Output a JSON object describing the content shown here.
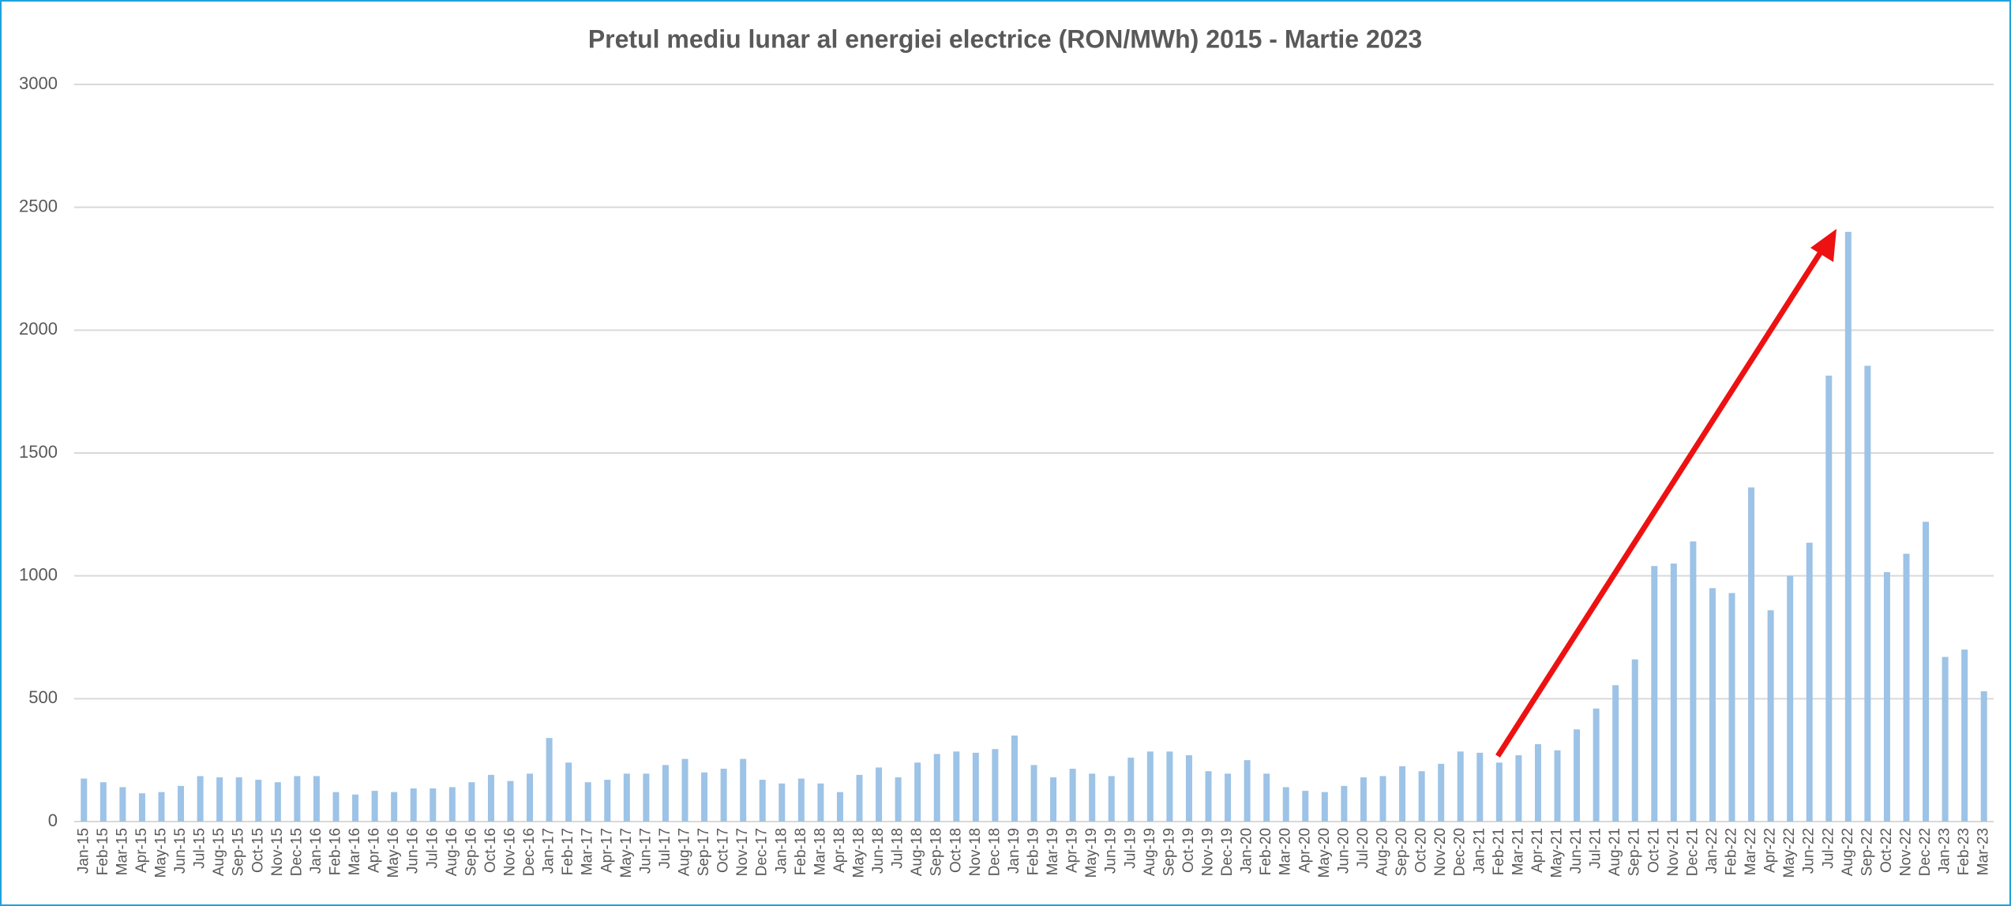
{
  "chart_data": {
    "type": "bar",
    "title": "Pretul mediu lunar al energiei electrice (RON/MWh) 2015 - Martie 2023",
    "categories": [
      "Jan-15",
      "Feb-15",
      "Mar-15",
      "Apr-15",
      "May-15",
      "Jun-15",
      "Jul-15",
      "Aug-15",
      "Sep-15",
      "Oct-15",
      "Nov-15",
      "Dec-15",
      "Jan-16",
      "Feb-16",
      "Mar-16",
      "Apr-16",
      "May-16",
      "Jun-16",
      "Jul-16",
      "Aug-16",
      "Sep-16",
      "Oct-16",
      "Nov-16",
      "Dec-16",
      "Jan-17",
      "Feb-17",
      "Mar-17",
      "Apr-17",
      "May-17",
      "Jun-17",
      "Jul-17",
      "Aug-17",
      "Sep-17",
      "Oct-17",
      "Nov-17",
      "Dec-17",
      "Jan-18",
      "Feb-18",
      "Mar-18",
      "Apr-18",
      "May-18",
      "Jun-18",
      "Jul-18",
      "Aug-18",
      "Sep-18",
      "Oct-18",
      "Nov-18",
      "Dec-18",
      "Jan-19",
      "Feb-19",
      "Mar-19",
      "Apr-19",
      "May-19",
      "Jun-19",
      "Jul-19",
      "Aug-19",
      "Sep-19",
      "Oct-19",
      "Nov-19",
      "Dec-19",
      "Jan-20",
      "Feb-20",
      "Mar-20",
      "Apr-20",
      "May-20",
      "Jun-20",
      "Jul-20",
      "Aug-20",
      "Sep-20",
      "Oct-20",
      "Nov-20",
      "Dec-20",
      "Jan-21",
      "Feb-21",
      "Mar-21",
      "Apr-21",
      "May-21",
      "Jun-21",
      "Jul-21",
      "Aug-21",
      "Sep-21",
      "Oct-21",
      "Nov-21",
      "Dec-21",
      "Jan-22",
      "Feb-22",
      "Mar-22",
      "Apr-22",
      "May-22",
      "Jun-22",
      "Jul-22",
      "Aug-22",
      "Sep-22",
      "Oct-22",
      "Nov-22",
      "Dec-22",
      "Jan-23",
      "Feb-23",
      "Mar-23"
    ],
    "values": [
      175,
      160,
      140,
      115,
      120,
      145,
      185,
      180,
      180,
      170,
      160,
      185,
      185,
      120,
      110,
      125,
      120,
      135,
      135,
      140,
      160,
      190,
      165,
      195,
      340,
      240,
      160,
      170,
      195,
      195,
      230,
      255,
      200,
      215,
      255,
      170,
      155,
      175,
      155,
      120,
      190,
      220,
      180,
      240,
      275,
      285,
      280,
      295,
      350,
      230,
      180,
      215,
      195,
      185,
      260,
      285,
      285,
      270,
      205,
      195,
      250,
      195,
      140,
      125,
      120,
      145,
      180,
      185,
      225,
      205,
      235,
      285,
      280,
      240,
      270,
      315,
      290,
      375,
      460,
      555,
      660,
      1040,
      1050,
      1140,
      950,
      930,
      1360,
      860,
      1000,
      1135,
      1815,
      2400,
      1855,
      1015,
      1090,
      1220,
      670,
      700,
      530
    ],
    "color": "#9dc3e6",
    "ylim": [
      0,
      3000
    ],
    "yticks": [
      0,
      500,
      1000,
      1500,
      2000,
      2500,
      3000
    ],
    "grid": true
  }
}
